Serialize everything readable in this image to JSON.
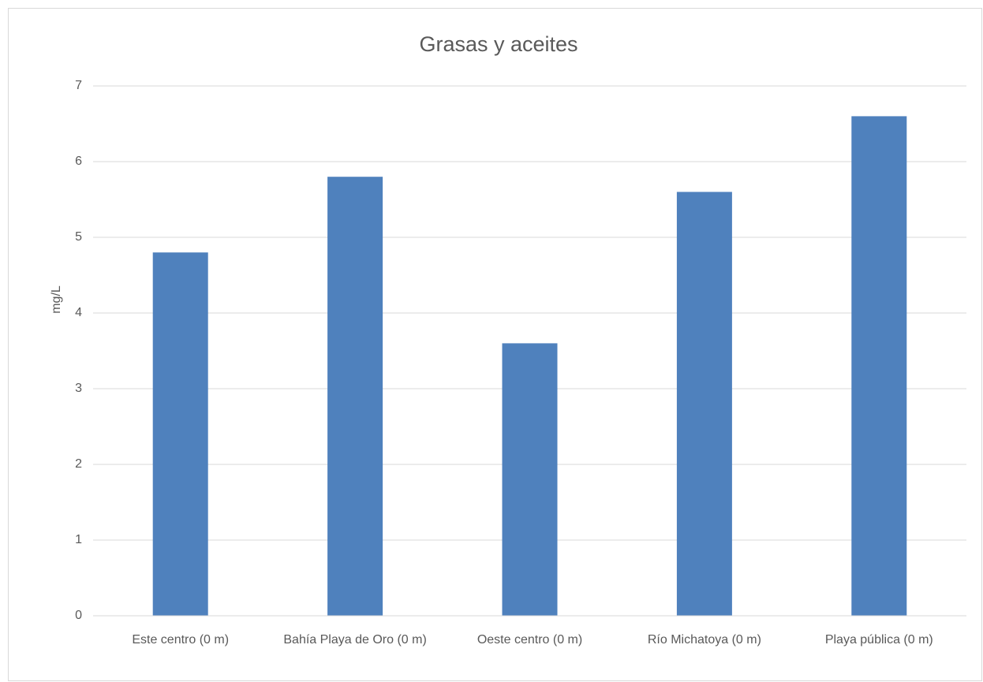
{
  "chart_data": {
    "type": "bar",
    "title": "Grasas y aceites",
    "y_label": "mg/L",
    "categories": [
      "Este centro (0 m)",
      "Bahía Playa de Oro (0 m)",
      "Oeste centro (0 m)",
      "Río Michatoya (0 m)",
      "Playa pública (0 m)"
    ],
    "values": [
      4.8,
      5.8,
      3.6,
      5.6,
      6.6
    ],
    "color": "#4f81bd",
    "ylim": [
      0,
      7
    ],
    "yticks": [
      0,
      1,
      2,
      3,
      4,
      5,
      6,
      7
    ],
    "grid": true
  }
}
